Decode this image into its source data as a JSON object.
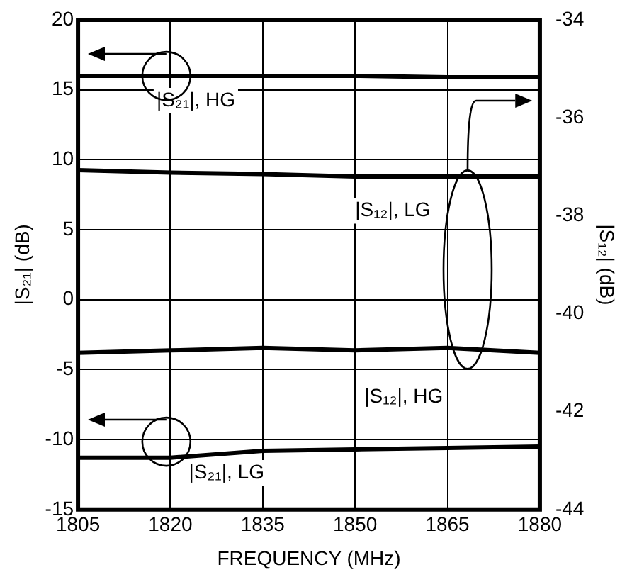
{
  "chart_data": {
    "type": "line",
    "xlabel": "FREQUENCY (MHz)",
    "ylabel": "|S₂₁| (dB)",
    "y2label": "|S₁₂| (dB)",
    "x": [
      1805,
      1820,
      1835,
      1850,
      1865,
      1880
    ],
    "xlim": [
      1805,
      1880
    ],
    "xticks": [
      1805,
      1820,
      1835,
      1850,
      1865,
      1880
    ],
    "ylim": [
      -15,
      20
    ],
    "yticks": [
      -15,
      -10,
      -5,
      0,
      5,
      10,
      15,
      20
    ],
    "y2lim": [
      -44,
      -34
    ],
    "y2ticks": [
      -44,
      -42,
      -40,
      -38,
      -36,
      -34
    ],
    "grid": true,
    "legend": false,
    "marker": "none",
    "line_style": "solid",
    "series": [
      {
        "name": "|S₂₁|, HG",
        "color": "#000000",
        "values": [
          16.0,
          16.0,
          16.0,
          16.0,
          15.9,
          15.9
        ]
      },
      {
        "name": "|S₁₂|, LG",
        "color": "#000000",
        "axis": "y2",
        "values": [
          -37.07,
          -37.12,
          -37.15,
          -37.2,
          -37.2,
          -37.2
        ]
      },
      {
        "name": "|S₁₂|, HG",
        "color": "#000000",
        "axis": "y2",
        "values": [
          -40.8,
          -40.75,
          -40.7,
          -40.75,
          -40.7,
          -40.8
        ]
      },
      {
        "name": "|S₂₁|, LG",
        "color": "#000000",
        "values": [
          -11.3,
          -11.3,
          -10.8,
          -10.7,
          -10.6,
          -10.5
        ]
      }
    ]
  }
}
